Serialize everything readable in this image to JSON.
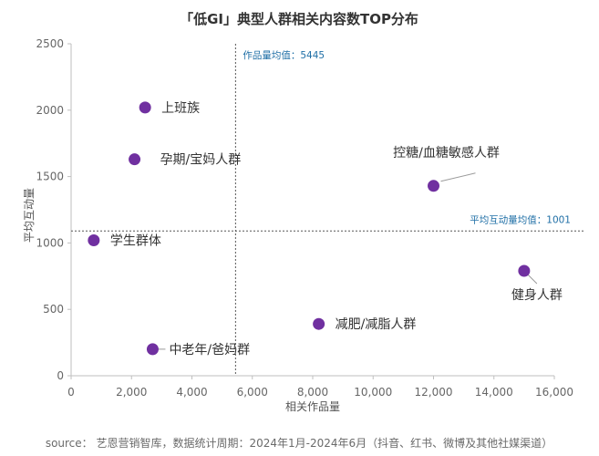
{
  "chart_data": {
    "type": "scatter",
    "title": "「低GI」典型人群相关内容数TOP分布",
    "xlabel": "相关作品量",
    "ylabel": "平均互动量",
    "xlim": [
      0,
      16000
    ],
    "ylim": [
      0,
      2500
    ],
    "xticks": [
      "0",
      "2,000",
      "4,000",
      "6,000",
      "8,000",
      "10,000",
      "12,000",
      "14,000",
      "16,000"
    ],
    "yticks": [
      "0",
      "500",
      "1000",
      "1500",
      "2000",
      "2500"
    ],
    "xtick_values": [
      0,
      2000,
      4000,
      6000,
      8000,
      10000,
      12000,
      14000,
      16000
    ],
    "ytick_values": [
      0,
      500,
      1000,
      1500,
      2000,
      2500
    ],
    "grid": false,
    "point_color": "#7030a0",
    "points": [
      {
        "label": "上班族",
        "x": 2450,
        "y": 2020
      },
      {
        "label": "孕期/宝妈人群",
        "x": 2100,
        "y": 1630
      },
      {
        "label": "学生群体",
        "x": 750,
        "y": 1020
      },
      {
        "label": "控糖/血糖敏感人群",
        "x": 12000,
        "y": 1430
      },
      {
        "label": "健身人群",
        "x": 15000,
        "y": 790
      },
      {
        "label": "减肥/减脂人群",
        "x": 8200,
        "y": 390
      },
      {
        "label": "中老年/爸妈群",
        "x": 2700,
        "y": 200
      }
    ],
    "reference_lines": {
      "x": {
        "value": 5445,
        "label": "作品量均值：5445"
      },
      "y": {
        "value": 1001,
        "label": "平均互动量均值：1001"
      }
    }
  },
  "source_note": "source： 艺恩营销智库，数据统计周期：2024年1月-2024年6月（抖音、红书、微博及其他社媒渠道）"
}
